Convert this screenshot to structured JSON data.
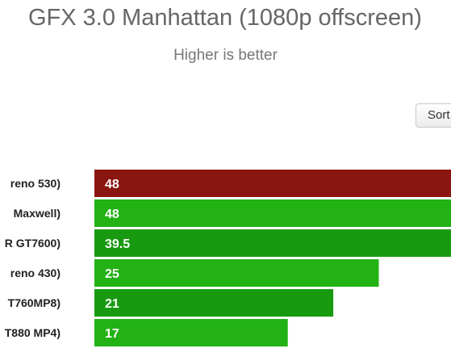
{
  "header": {
    "title": "GFX 3.0 Manhattan (1080p offscreen)",
    "subtitle": "Higher is better"
  },
  "controls": {
    "sort_label": "Sort"
  },
  "colors": {
    "highlight": "#8b1510",
    "bright_green": "#22b214",
    "dark_green": "#189a10"
  },
  "chart_data": {
    "type": "bar",
    "orientation": "horizontal",
    "categories": [
      "reno 530)",
      "Maxwell)",
      "R GT7600)",
      "reno 430)",
      "T760MP8)",
      "T880 MP4)"
    ],
    "values": [
      48,
      48,
      39.5,
      25,
      21,
      17
    ],
    "value_labels": [
      "48",
      "48",
      "39.5",
      "25",
      "21",
      "17"
    ],
    "bar_colors": [
      "#8b1510",
      "#22b214",
      "#189a10",
      "#22b214",
      "#189a10",
      "#22b214"
    ],
    "title": "GFX 3.0 Manhattan (1080p offscreen)",
    "subtitle": "Higher is better",
    "xlabel": "",
    "ylabel": "",
    "xlim": [
      0,
      32
    ],
    "grid": false,
    "legend": "none"
  }
}
